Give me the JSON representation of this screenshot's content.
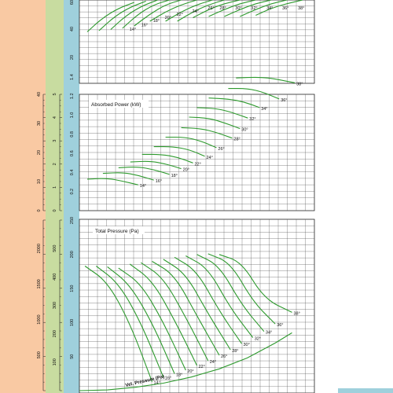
{
  "chart_data": [
    {
      "type": "line",
      "panel": "efficiency",
      "title": "",
      "colors": {
        "curves": "#2e9a2e"
      },
      "y_ticks": [
        "20",
        "40",
        "60"
      ],
      "ylim": [
        0,
        70
      ],
      "series": [
        {
          "name": "14°",
          "x": [
            0.02,
            0.06,
            0.1,
            0.14
          ],
          "y": [
            43,
            55,
            63,
            68
          ]
        },
        {
          "name": "16°",
          "x": [
            0.05,
            0.09,
            0.13,
            0.17
          ],
          "y": [
            44,
            56,
            64,
            69
          ]
        },
        {
          "name": "18°",
          "x": [
            0.08,
            0.12,
            0.16,
            0.2
          ],
          "y": [
            45,
            57,
            65,
            70
          ]
        },
        {
          "name": "20°",
          "x": [
            0.11,
            0.15,
            0.19,
            0.23
          ],
          "y": [
            46,
            58,
            66,
            70
          ]
        },
        {
          "name": "22°",
          "x": [
            0.14,
            0.18,
            0.22,
            0.26
          ],
          "y": [
            48,
            58,
            66,
            70
          ]
        },
        {
          "name": "24°",
          "x": [
            0.18,
            0.22,
            0.26,
            0.3
          ],
          "y": [
            52,
            60,
            66,
            70
          ]
        },
        {
          "name": "26°",
          "x": [
            0.22,
            0.26,
            0.3,
            0.34
          ],
          "y": [
            52,
            60,
            66,
            70
          ]
        },
        {
          "name": "28°",
          "x": [
            0.25,
            0.29,
            0.33,
            0.37
          ],
          "y": [
            52,
            60,
            66,
            70
          ]
        },
        {
          "name": "30°",
          "x": [
            0.29,
            0.33,
            0.37,
            0.41
          ],
          "y": [
            55,
            62,
            67,
            70
          ]
        },
        {
          "name": "32°",
          "x": [
            0.33,
            0.37,
            0.41,
            0.45
          ],
          "y": [
            56,
            62,
            67,
            70
          ]
        },
        {
          "name": "34°",
          "x": [
            0.37,
            0.41,
            0.45,
            0.49
          ],
          "y": [
            56,
            62,
            67,
            70
          ]
        },
        {
          "name": "36°",
          "x": [
            0.41,
            0.45,
            0.49,
            0.53
          ],
          "y": [
            56,
            62,
            67,
            70
          ]
        },
        {
          "name": "38°",
          "x": [
            0.45,
            0.49,
            0.53,
            0.57
          ],
          "y": [
            57,
            63,
            67,
            70
          ]
        }
      ]
    },
    {
      "type": "line",
      "panel": "power",
      "title": "Absorbed Power (kW)",
      "colors": {
        "curves": "#2e9a2e"
      },
      "y_ticks": [
        "0.2",
        "0.4",
        "0.6",
        "0.8",
        "1.0",
        "1.2",
        "1.4"
      ],
      "ylim": [
        0,
        1.5
      ],
      "series": [
        {
          "name": "14°",
          "x": [
            0.02,
            0.07,
            0.11,
            0.15
          ],
          "y": [
            0.33,
            0.34,
            0.31,
            0.27
          ]
        },
        {
          "name": "16°",
          "x": [
            0.06,
            0.11,
            0.15,
            0.19
          ],
          "y": [
            0.39,
            0.4,
            0.37,
            0.32
          ]
        },
        {
          "name": "18°",
          "x": [
            0.1,
            0.15,
            0.19,
            0.23
          ],
          "y": [
            0.45,
            0.46,
            0.43,
            0.38
          ]
        },
        {
          "name": "20°",
          "x": [
            0.13,
            0.18,
            0.22,
            0.26
          ],
          "y": [
            0.51,
            0.52,
            0.49,
            0.44
          ]
        },
        {
          "name": "22°",
          "x": [
            0.16,
            0.21,
            0.25,
            0.29
          ],
          "y": [
            0.59,
            0.59,
            0.56,
            0.5
          ]
        },
        {
          "name": "24°",
          "x": [
            0.19,
            0.24,
            0.28,
            0.32
          ],
          "y": [
            0.67,
            0.67,
            0.64,
            0.57
          ]
        },
        {
          "name": "26°",
          "x": [
            0.22,
            0.27,
            0.31,
            0.35
          ],
          "y": [
            0.77,
            0.77,
            0.73,
            0.66
          ]
        },
        {
          "name": "28°",
          "x": [
            0.26,
            0.31,
            0.35,
            0.39
          ],
          "y": [
            0.87,
            0.86,
            0.82,
            0.76
          ]
        },
        {
          "name": "30°",
          "x": [
            0.28,
            0.33,
            0.37,
            0.41
          ],
          "y": [
            0.98,
            0.97,
            0.92,
            0.86
          ]
        },
        {
          "name": "32°",
          "x": [
            0.3,
            0.35,
            0.39,
            0.43
          ],
          "y": [
            1.08,
            1.07,
            1.03,
            0.97
          ]
        },
        {
          "name": "34°",
          "x": [
            0.33,
            0.38,
            0.42,
            0.46
          ],
          "y": [
            1.18,
            1.17,
            1.14,
            1.08
          ]
        },
        {
          "name": "36°",
          "x": [
            0.38,
            0.43,
            0.47,
            0.51
          ],
          "y": [
            1.28,
            1.28,
            1.24,
            1.17
          ]
        },
        {
          "name": "38°",
          "x": [
            0.4,
            0.46,
            0.5,
            0.55
          ],
          "y": [
            1.39,
            1.4,
            1.38,
            1.34
          ]
        }
      ]
    },
    {
      "type": "line",
      "panel": "pressure",
      "title": "Total Pressure (Pa)",
      "colors": {
        "curves": "#2e9a2e"
      },
      "y_ticks": [
        "50",
        "100",
        "150",
        "200",
        "250"
      ],
      "ylim": [
        0,
        250
      ],
      "series": [
        {
          "name": "14°",
          "x": [
            0.01,
            0.05,
            0.09,
            0.13
          ],
          "y": [
            183,
            160,
            100,
            13
          ]
        },
        {
          "name": "16°",
          "x": [
            0.03,
            0.07,
            0.11,
            0.15
          ],
          "y": [
            183,
            158,
            100,
            20
          ]
        },
        {
          "name": "18°",
          "x": [
            0.05,
            0.09,
            0.13,
            0.17
          ],
          "y": [
            182,
            156,
            100,
            25
          ]
        },
        {
          "name": "20°",
          "x": [
            0.07,
            0.11,
            0.15,
            0.19
          ],
          "y": [
            180,
            157,
            101,
            30
          ]
        },
        {
          "name": "22°",
          "x": [
            0.09,
            0.13,
            0.17,
            0.21
          ],
          "y": [
            186,
            162,
            104,
            37
          ]
        },
        {
          "name": "24°",
          "x": [
            0.11,
            0.15,
            0.19,
            0.23
          ],
          "y": [
            188,
            166,
            108,
            44
          ]
        },
        {
          "name": "26°",
          "x": [
            0.13,
            0.17,
            0.21,
            0.25
          ],
          "y": [
            190,
            170,
            110,
            52
          ]
        },
        {
          "name": "28°",
          "x": [
            0.15,
            0.19,
            0.23,
            0.27
          ],
          "y": [
            193,
            172,
            113,
            60
          ]
        },
        {
          "name": "30°",
          "x": [
            0.17,
            0.21,
            0.25,
            0.29
          ],
          "y": [
            196,
            176,
            117,
            69
          ]
        },
        {
          "name": "32°",
          "x": [
            0.19,
            0.23,
            0.27,
            0.31
          ],
          "y": [
            198,
            180,
            121,
            78
          ]
        },
        {
          "name": "34°",
          "x": [
            0.21,
            0.25,
            0.29,
            0.33
          ],
          "y": [
            200,
            184,
            126,
            87
          ]
        },
        {
          "name": "36°",
          "x": [
            0.23,
            0.27,
            0.31,
            0.35
          ],
          "y": [
            201,
            188,
            131,
            98
          ]
        },
        {
          "name": "38°",
          "x": [
            0.25,
            0.29,
            0.33,
            0.38
          ],
          "y": [
            200,
            189,
            135,
            115
          ]
        }
      ],
      "velocity_pressure": {
        "label": "Vel. Pressure (Pa)",
        "x": [
          0.0,
          0.05,
          0.1,
          0.15,
          0.2,
          0.25,
          0.3,
          0.35,
          0.38
        ],
        "y": [
          0,
          1,
          5,
          11,
          20,
          32,
          48,
          70,
          85
        ]
      }
    }
  ],
  "side_scales": {
    "power": {
      "orange": [
        "0",
        "10",
        "20",
        "30",
        "40"
      ],
      "green": [
        "0",
        "1",
        "2",
        "3",
        "4",
        "5"
      ]
    },
    "pressure": {
      "orange": [
        "500",
        "1000",
        "1500",
        "2000"
      ],
      "green": [
        "100",
        "200",
        "300",
        "400",
        "500"
      ]
    }
  }
}
